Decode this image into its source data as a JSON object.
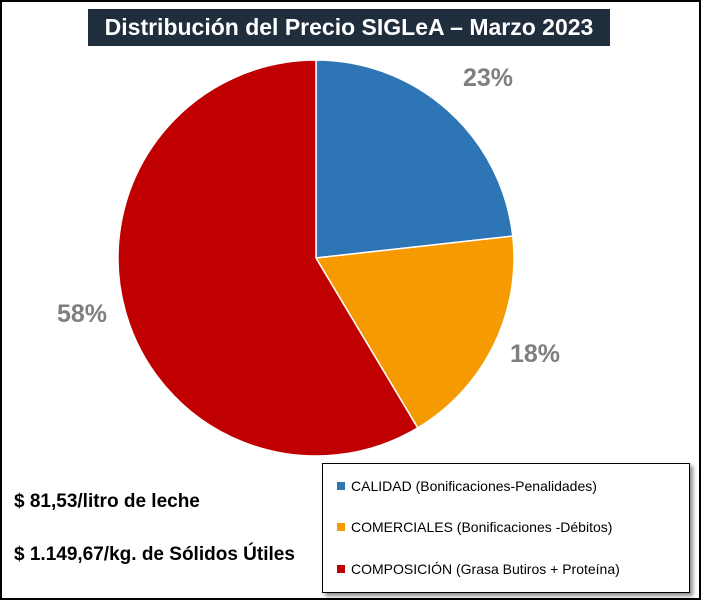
{
  "chart_data": {
    "type": "pie",
    "title": "Distribución del Precio SIGLeA – Marzo 2023",
    "slices": [
      {
        "name": "CALIDAD (Bonificaciones-Penalidades)",
        "value": 23,
        "label": "23%",
        "color": "#2e75b6"
      },
      {
        "name": "COMERCIALES (Bonificaciones -Débitos)",
        "value": 18,
        "label": "18%",
        "color": "#f59a00"
      },
      {
        "name": "COMPOSICIÓN (Grasa Butiros + Proteína)",
        "value": 58,
        "label": "58%",
        "color": "#c00000"
      }
    ],
    "legend_position": "bottom-right",
    "label_color": "#7f7f7f"
  },
  "notes": {
    "price_per_liter": "$ 81,53/litro de leche",
    "price_per_kg": "$ 1.149,67/kg. de Sólidos Útiles"
  },
  "colors": {
    "title_background": "#1f2d3d",
    "title_text": "#ffffff"
  }
}
